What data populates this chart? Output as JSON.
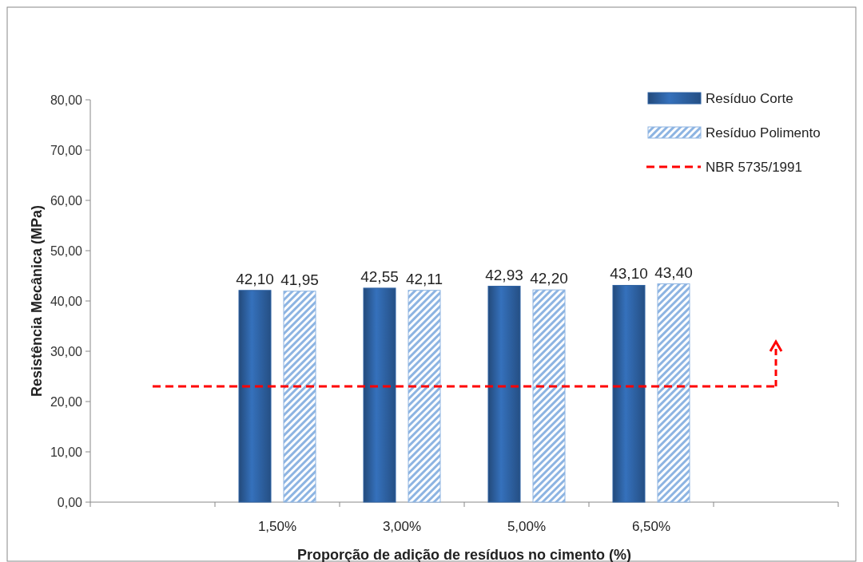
{
  "chart_data": {
    "type": "bar",
    "xlabel": "Proporção de adição de resíduos no cimento (%)",
    "ylabel": "Resistência Mecânica (MPa)",
    "categories": [
      null,
      "1,50%",
      "3,00%",
      "5,00%",
      "6,50%",
      null
    ],
    "series": [
      {
        "name": "Resíduo Corte",
        "color": "#2e62a3",
        "values": [
          null,
          42.1,
          42.55,
          42.93,
          43.1,
          null
        ],
        "value_labels": [
          null,
          "42,10",
          "42,55",
          "42,93",
          "43,10",
          null
        ]
      },
      {
        "name": "Resíduo Polimento",
        "color": "#8db4e2",
        "values": [
          null,
          41.95,
          42.11,
          42.2,
          43.4,
          null
        ],
        "value_labels": [
          null,
          "41,95",
          "42,11",
          "42,20",
          "43,40",
          null
        ]
      }
    ],
    "ylim": [
      0,
      80
    ],
    "yticks": [
      {
        "value": 0,
        "label": "0,00"
      },
      {
        "value": 10,
        "label": "10,00"
      },
      {
        "value": 20,
        "label": "20,00"
      },
      {
        "value": 30,
        "label": "30,00"
      },
      {
        "value": 40,
        "label": "40,00"
      },
      {
        "value": 50,
        "label": "50,00"
      },
      {
        "value": 60,
        "label": "60,00"
      },
      {
        "value": 70,
        "label": "70,00"
      },
      {
        "value": 80,
        "label": "80,00"
      }
    ],
    "ref_lines": [
      {
        "axis": "y",
        "value": 23,
        "label": "NBR 5735/1991",
        "color": "#ff0000",
        "line_style": "dashed"
      }
    ],
    "legend": "top right"
  }
}
